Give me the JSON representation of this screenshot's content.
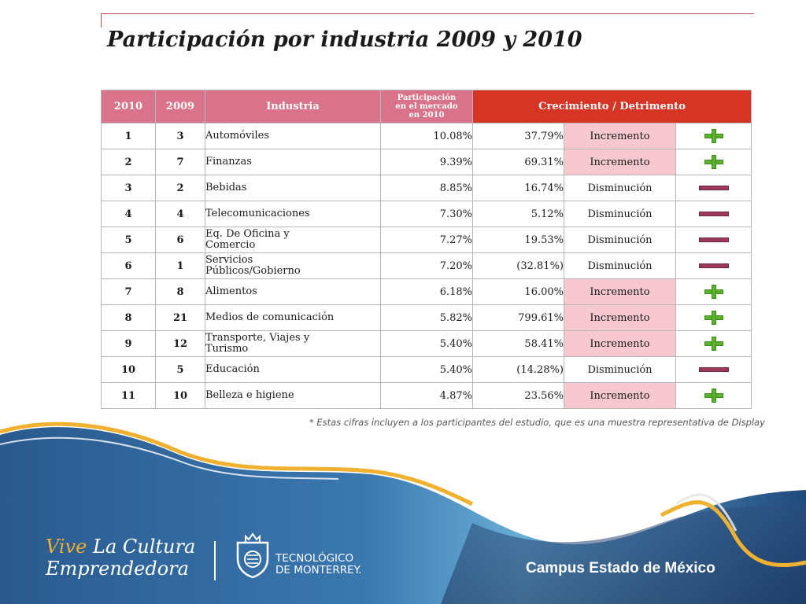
{
  "title": "Participación por industria 2009 y 2010",
  "table": {
    "headers": {
      "rank_2010": "2010",
      "rank_2009": "2009",
      "industry": "Industria",
      "share": [
        "Participación",
        "en el mercado",
        "en 2010"
      ],
      "growth": "Crecimiento / Detrimento"
    },
    "rows": [
      {
        "rank_2010": "1",
        "rank_2009": "3",
        "industry": [
          "Automóviles"
        ],
        "share": "10.08%",
        "growth": "37.79%",
        "status": "Incremento",
        "icon": "plus-icon"
      },
      {
        "rank_2010": "2",
        "rank_2009": "7",
        "industry": [
          "Finanzas"
        ],
        "share": "9.39%",
        "growth": "69.31%",
        "status": "Incremento",
        "icon": "plus-icon"
      },
      {
        "rank_2010": "3",
        "rank_2009": "2",
        "industry": [
          "Bebidas"
        ],
        "share": "8.85%",
        "growth": "16.74%",
        "status": "Disminución",
        "icon": "minus-icon"
      },
      {
        "rank_2010": "4",
        "rank_2009": "4",
        "industry": [
          "Telecomunicaciones"
        ],
        "share": "7.30%",
        "growth": "5.12%",
        "status": "Disminución",
        "icon": "minus-icon"
      },
      {
        "rank_2010": "5",
        "rank_2009": "6",
        "industry": [
          "Eq. De Oficina y",
          "Comercio"
        ],
        "share": "7.27%",
        "growth": "19.53%",
        "status": "Disminución",
        "icon": "minus-icon"
      },
      {
        "rank_2010": "6",
        "rank_2009": "1",
        "industry": [
          "Servicios",
          "Públicos/Gobierno"
        ],
        "share": "7.20%",
        "growth": "(32.81%)",
        "status": "Disminución",
        "icon": "minus-icon"
      },
      {
        "rank_2010": "7",
        "rank_2009": "8",
        "industry": [
          "Alimentos"
        ],
        "share": "6.18%",
        "growth": "16.00%",
        "status": "Incremento",
        "icon": "plus-icon"
      },
      {
        "rank_2010": "8",
        "rank_2009": "21",
        "industry": [
          "Medios de comunicación"
        ],
        "share": "5.82%",
        "growth": "799.61%",
        "status": "Incremento",
        "icon": "plus-icon"
      },
      {
        "rank_2010": "9",
        "rank_2009": "12",
        "industry": [
          "Transporte, Viajes y",
          "Turismo"
        ],
        "share": "5.40%",
        "growth": "58.41%",
        "status": "Incremento",
        "icon": "plus-icon"
      },
      {
        "rank_2010": "10",
        "rank_2009": "5",
        "industry": [
          "Educación"
        ],
        "share": "5.40%",
        "growth": "(14.28%)",
        "status": "Disminución",
        "icon": "minus-icon"
      },
      {
        "rank_2010": "11",
        "rank_2009": "10",
        "industry": [
          "Belleza e higiene"
        ],
        "share": "4.87%",
        "growth": "23.56%",
        "status": "Incremento",
        "icon": "plus-icon"
      }
    ]
  },
  "footnote": "* Estas cifras incluyen a los participantes del estudio, que es una muestra representativa de Display",
  "footer": {
    "slogan_vive": "Vive",
    "slogan_rest": "La Cultura",
    "slogan_line2": "Emprendedora",
    "institution_line1": "TECNOLÓGICO",
    "institution_line2": "DE MONTERREY.",
    "campus": "Campus Estado de México"
  },
  "colors": {
    "header_pink": "#d9738b",
    "header_red": "#d63424",
    "increase_bg": "#f8c8d0",
    "increase_text": "#c62828",
    "plus_green": "#5cb02c",
    "minus_purple": "#9c3a58",
    "wave_blue": "#2a5f94",
    "wave_gold": "#f0b030"
  }
}
